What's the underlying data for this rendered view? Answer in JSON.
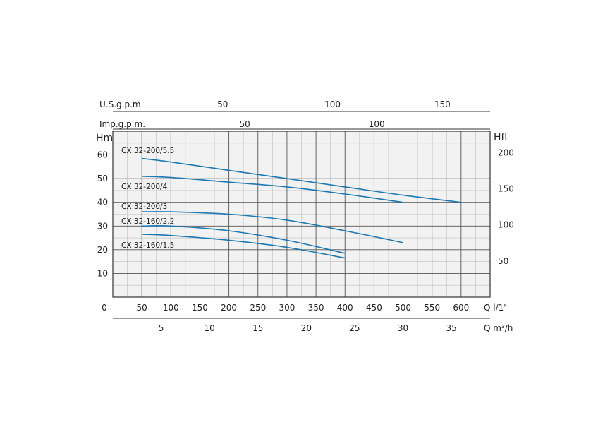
{
  "chart_data": {
    "type": "line",
    "grid": true,
    "x_axis": {
      "unit_label": "Q l/1'",
      "range": [
        0,
        650
      ],
      "ticks": [
        0,
        50,
        100,
        150,
        200,
        250,
        300,
        350,
        400,
        450,
        500,
        550,
        600
      ]
    },
    "secondary_x_axes": [
      {
        "unit_label": "Q m³/h",
        "ticks": [
          5,
          10,
          15,
          20,
          25,
          30,
          35
        ]
      },
      {
        "unit_label": "U.S.g.p.m.",
        "ticks": [
          50,
          100,
          150
        ]
      },
      {
        "unit_label": "Imp.g.p.m.",
        "ticks": [
          50,
          100
        ]
      }
    ],
    "y_axis": {
      "unit_label": "Hm",
      "range": [
        0,
        70
      ],
      "ticks": [
        10,
        20,
        30,
        40,
        50,
        60
      ]
    },
    "y_axis_right": {
      "unit_label": "Hft",
      "ticks": [
        50,
        100,
        150,
        200
      ]
    },
    "series": [
      {
        "name": "CX 32-200/5.5",
        "x": [
          50,
          100,
          200,
          300,
          400,
          500,
          600
        ],
        "y": [
          58.5,
          57,
          53.5,
          50,
          46.5,
          43,
          40
        ]
      },
      {
        "name": "CX 32-200/4",
        "x": [
          50,
          100,
          200,
          300,
          400,
          500
        ],
        "y": [
          51,
          50.5,
          48.5,
          46.5,
          43.5,
          40
        ]
      },
      {
        "name": "CX 32-200/3",
        "x": [
          50,
          100,
          200,
          300,
          400,
          500
        ],
        "y": [
          36,
          36,
          35,
          32.5,
          28,
          23
        ]
      },
      {
        "name": "CX 32-160/2.2",
        "x": [
          50,
          100,
          200,
          300,
          400
        ],
        "y": [
          30,
          30,
          28,
          24,
          18.5
        ]
      },
      {
        "name": "CX 32-160/1.5",
        "x": [
          50,
          100,
          200,
          300,
          400
        ],
        "y": [
          26.5,
          26,
          24,
          21,
          16.5
        ]
      }
    ],
    "colors": {
      "series": "#1b78b4",
      "grid": "#555555",
      "background": "#f2f2f2"
    }
  }
}
